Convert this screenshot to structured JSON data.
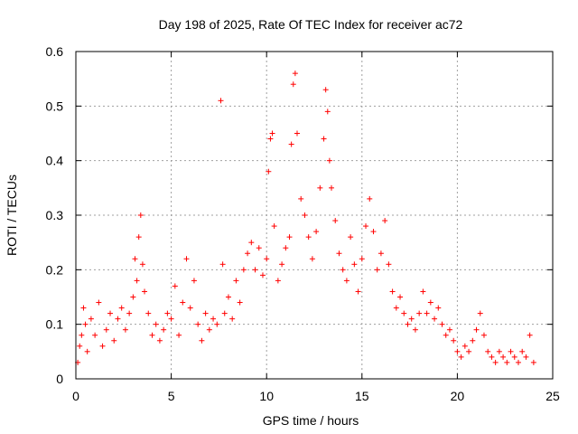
{
  "chart_data": {
    "type": "scatter",
    "title": "Day 198 of 2025, Rate Of TEC Index for receiver ac72",
    "xlabel": "GPS time / hours",
    "ylabel": "ROTI / TECUs",
    "xlim": [
      0,
      25
    ],
    "ylim": [
      0,
      0.6
    ],
    "x_ticks": [
      0,
      5,
      10,
      15,
      20,
      25
    ],
    "y_ticks": [
      0,
      0.1,
      0.2,
      0.3,
      0.4,
      0.5,
      0.6
    ],
    "x_tick_labels": [
      "0",
      "5",
      "10",
      "15",
      "20",
      "25"
    ],
    "y_tick_labels": [
      "0",
      "0.1",
      "0.2",
      "0.3",
      "0.4",
      "0.5",
      "0.6"
    ],
    "grid": true,
    "marker": "+",
    "color": "#ff0000",
    "series": [
      {
        "name": "ROTI",
        "points": [
          [
            0.1,
            0.03
          ],
          [
            0.2,
            0.06
          ],
          [
            0.3,
            0.08
          ],
          [
            0.4,
            0.13
          ],
          [
            0.5,
            0.1
          ],
          [
            0.6,
            0.05
          ],
          [
            0.8,
            0.11
          ],
          [
            1.0,
            0.08
          ],
          [
            1.2,
            0.14
          ],
          [
            1.4,
            0.06
          ],
          [
            1.6,
            0.09
          ],
          [
            1.8,
            0.12
          ],
          [
            2.0,
            0.07
          ],
          [
            2.2,
            0.11
          ],
          [
            2.4,
            0.13
          ],
          [
            2.6,
            0.09
          ],
          [
            2.8,
            0.12
          ],
          [
            3.0,
            0.15
          ],
          [
            3.1,
            0.22
          ],
          [
            3.2,
            0.18
          ],
          [
            3.3,
            0.26
          ],
          [
            3.4,
            0.3
          ],
          [
            3.5,
            0.21
          ],
          [
            3.6,
            0.16
          ],
          [
            3.8,
            0.12
          ],
          [
            4.0,
            0.08
          ],
          [
            4.2,
            0.1
          ],
          [
            4.4,
            0.07
          ],
          [
            4.6,
            0.09
          ],
          [
            4.8,
            0.12
          ],
          [
            5.0,
            0.11
          ],
          [
            5.2,
            0.17
          ],
          [
            5.4,
            0.08
          ],
          [
            5.6,
            0.14
          ],
          [
            5.8,
            0.22
          ],
          [
            6.0,
            0.13
          ],
          [
            6.2,
            0.18
          ],
          [
            6.4,
            0.1
          ],
          [
            6.6,
            0.07
          ],
          [
            6.8,
            0.12
          ],
          [
            7.0,
            0.09
          ],
          [
            7.2,
            0.11
          ],
          [
            7.4,
            0.1
          ],
          [
            7.6,
            0.51
          ],
          [
            7.7,
            0.21
          ],
          [
            7.8,
            0.12
          ],
          [
            8.0,
            0.15
          ],
          [
            8.2,
            0.11
          ],
          [
            8.4,
            0.18
          ],
          [
            8.6,
            0.14
          ],
          [
            8.8,
            0.2
          ],
          [
            9.0,
            0.23
          ],
          [
            9.2,
            0.25
          ],
          [
            9.4,
            0.2
          ],
          [
            9.6,
            0.24
          ],
          [
            9.8,
            0.19
          ],
          [
            10.0,
            0.22
          ],
          [
            10.1,
            0.38
          ],
          [
            10.2,
            0.44
          ],
          [
            10.3,
            0.45
          ],
          [
            10.4,
            0.28
          ],
          [
            10.6,
            0.18
          ],
          [
            10.8,
            0.21
          ],
          [
            11.0,
            0.24
          ],
          [
            11.2,
            0.26
          ],
          [
            11.3,
            0.43
          ],
          [
            11.4,
            0.54
          ],
          [
            11.5,
            0.56
          ],
          [
            11.6,
            0.45
          ],
          [
            11.8,
            0.33
          ],
          [
            12.0,
            0.3
          ],
          [
            12.2,
            0.26
          ],
          [
            12.4,
            0.22
          ],
          [
            12.6,
            0.27
          ],
          [
            12.8,
            0.35
          ],
          [
            13.0,
            0.44
          ],
          [
            13.1,
            0.53
          ],
          [
            13.2,
            0.49
          ],
          [
            13.3,
            0.4
          ],
          [
            13.4,
            0.35
          ],
          [
            13.6,
            0.29
          ],
          [
            13.8,
            0.23
          ],
          [
            14.0,
            0.2
          ],
          [
            14.2,
            0.18
          ],
          [
            14.4,
            0.26
          ],
          [
            14.6,
            0.21
          ],
          [
            14.8,
            0.16
          ],
          [
            15.0,
            0.22
          ],
          [
            15.2,
            0.28
          ],
          [
            15.4,
            0.33
          ],
          [
            15.6,
            0.27
          ],
          [
            15.8,
            0.2
          ],
          [
            16.0,
            0.23
          ],
          [
            16.2,
            0.29
          ],
          [
            16.4,
            0.21
          ],
          [
            16.6,
            0.16
          ],
          [
            16.8,
            0.13
          ],
          [
            17.0,
            0.15
          ],
          [
            17.2,
            0.12
          ],
          [
            17.4,
            0.1
          ],
          [
            17.6,
            0.11
          ],
          [
            17.8,
            0.09
          ],
          [
            18.0,
            0.12
          ],
          [
            18.2,
            0.16
          ],
          [
            18.4,
            0.12
          ],
          [
            18.6,
            0.14
          ],
          [
            18.8,
            0.11
          ],
          [
            19.0,
            0.13
          ],
          [
            19.2,
            0.1
          ],
          [
            19.4,
            0.08
          ],
          [
            19.6,
            0.09
          ],
          [
            19.8,
            0.07
          ],
          [
            20.0,
            0.05
          ],
          [
            20.2,
            0.04
          ],
          [
            20.4,
            0.06
          ],
          [
            20.6,
            0.05
          ],
          [
            20.8,
            0.07
          ],
          [
            21.0,
            0.09
          ],
          [
            21.2,
            0.12
          ],
          [
            21.4,
            0.08
          ],
          [
            21.6,
            0.05
          ],
          [
            21.8,
            0.04
          ],
          [
            22.0,
            0.03
          ],
          [
            22.2,
            0.05
          ],
          [
            22.4,
            0.04
          ],
          [
            22.6,
            0.03
          ],
          [
            22.8,
            0.05
          ],
          [
            23.0,
            0.04
          ],
          [
            23.2,
            0.03
          ],
          [
            23.4,
            0.05
          ],
          [
            23.6,
            0.04
          ],
          [
            23.8,
            0.08
          ],
          [
            24.0,
            0.03
          ]
        ]
      }
    ]
  }
}
